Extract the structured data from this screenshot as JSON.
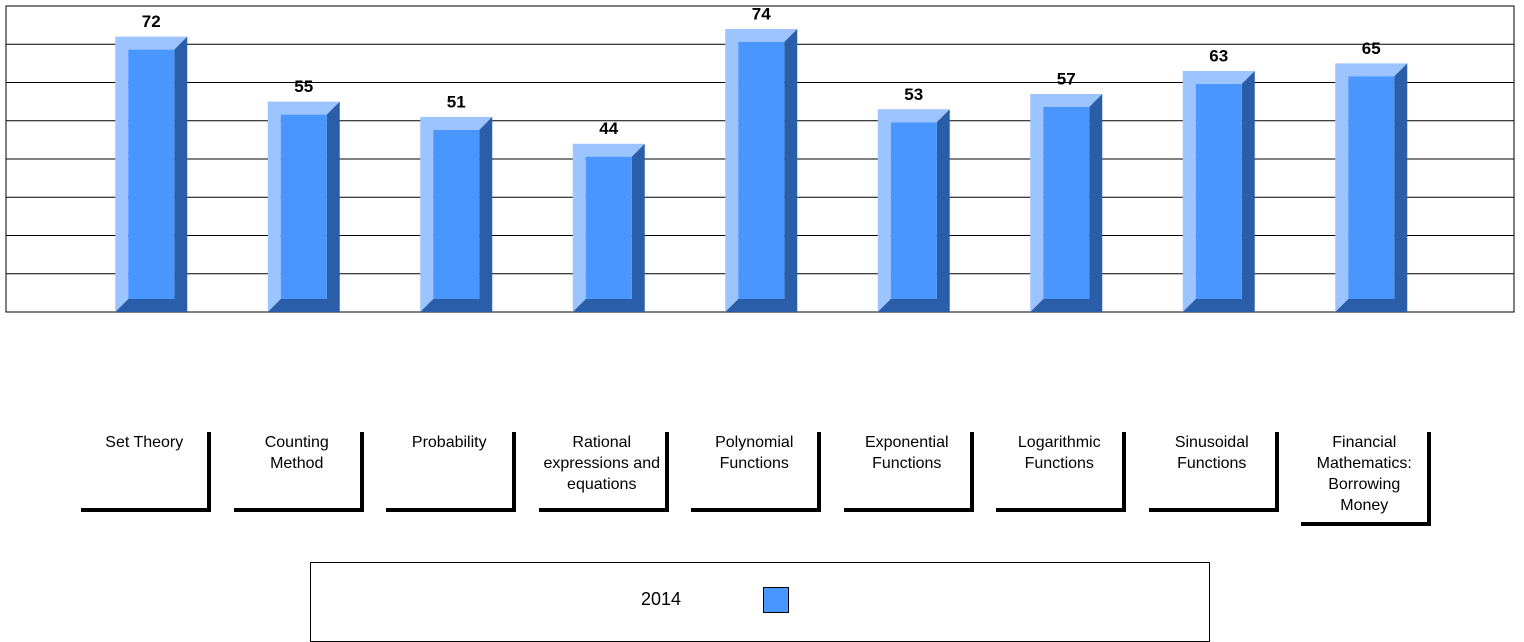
{
  "chart_data": {
    "type": "bar",
    "categories": [
      "Set Theory",
      "Counting Method",
      "Probability",
      "Rational expressions and equations",
      "Polynomial Functions",
      "Exponential Functions",
      "Logarithmic Functions",
      "Sinusoidal Functions",
      "Financial Mathematics: Borrowing Money"
    ],
    "series": [
      {
        "name": "2014",
        "color": "#4a96ff",
        "values": [
          72,
          55,
          51,
          44,
          74,
          53,
          57,
          63,
          65
        ]
      }
    ],
    "ylim": [
      0,
      80
    ],
    "yticks": [
      0,
      10,
      20,
      30,
      40,
      50,
      60,
      70,
      80
    ],
    "grid": true
  }
}
